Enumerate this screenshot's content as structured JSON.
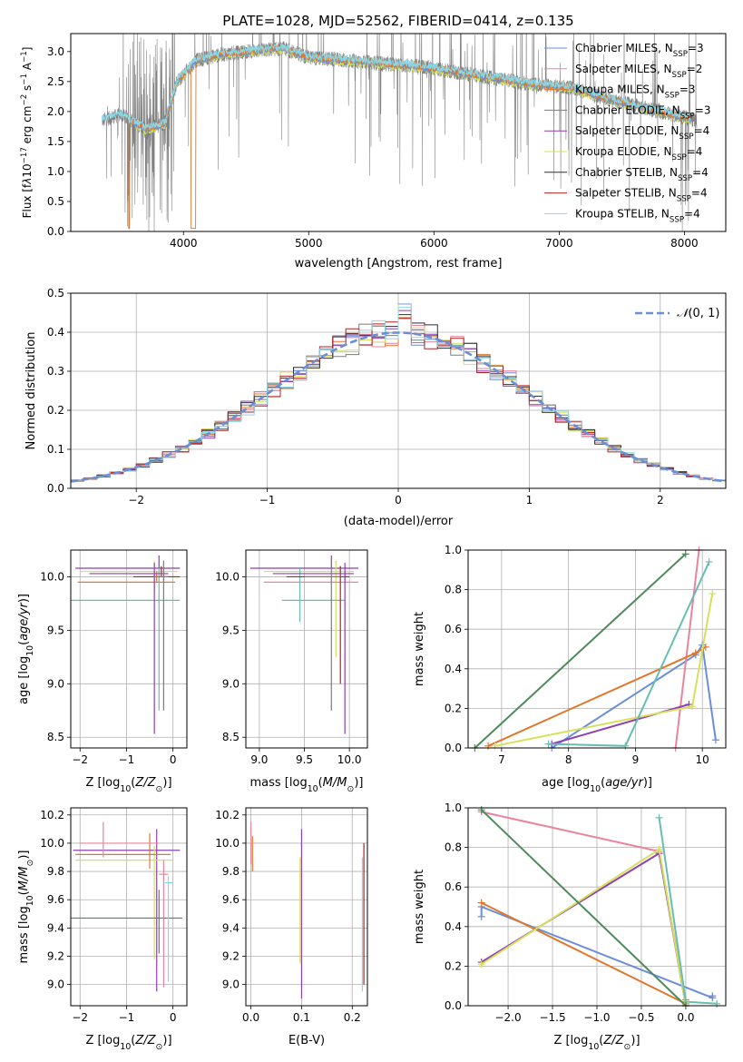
{
  "figure": {
    "series_colors": [
      "#6a8fd8",
      "#e9849d",
      "#e0772b",
      "#7b7b7b",
      "#8e3fb3",
      "#d6e05a",
      "#2e2e2e",
      "#b22222",
      "#88d8e8"
    ],
    "accent_teal": "#66bdb0",
    "accent_green": "#4e8a5c"
  },
  "chart_data": [
    {
      "id": "spectrum",
      "type": "line",
      "title": "PLATE=1028, MJD=52562, FIBERID=0414, z=0.135",
      "xlabel": "wavelength [Angstrom, rest frame]",
      "ylabel": "Flux [f_λ10^-17 erg cm^-2 s^-1 A^-1]",
      "xlim": [
        3100,
        8330
      ],
      "ylim": [
        0,
        3.3
      ],
      "xticks": [
        4000,
        5000,
        6000,
        7000,
        8000
      ],
      "yticks": [
        0.0,
        0.5,
        1.0,
        1.5,
        2.0,
        2.5,
        3.0
      ],
      "legend_position": "upper right",
      "legend": [
        {
          "imf": "Chabrier",
          "lib": "MILES",
          "n": "3"
        },
        {
          "imf": "Salpeter",
          "lib": "MILES",
          "n": "2"
        },
        {
          "imf": "Kroupa",
          "lib": "MILES",
          "n": "3"
        },
        {
          "imf": "Chabrier",
          "lib": "ELODIE",
          "n": "3"
        },
        {
          "imf": "Salpeter",
          "lib": "ELODIE",
          "n": "4"
        },
        {
          "imf": "Kroupa",
          "lib": "ELODIE",
          "n": "4"
        },
        {
          "imf": "Chabrier",
          "lib": "STELIB",
          "n": "4"
        },
        {
          "imf": "Salpeter",
          "lib": "STELIB",
          "n": "4"
        },
        {
          "imf": "Kroupa",
          "lib": "STELIB",
          "n": "4"
        }
      ],
      "data_range": [
        3350,
        8100
      ],
      "continuum_points": [
        [
          3350,
          1.85
        ],
        [
          3500,
          1.95
        ],
        [
          3700,
          1.7
        ],
        [
          3850,
          1.8
        ],
        [
          3950,
          2.5
        ],
        [
          4100,
          2.85
        ],
        [
          4300,
          2.95
        ],
        [
          4500,
          3.0
        ],
        [
          4800,
          3.05
        ],
        [
          5000,
          2.9
        ],
        [
          5300,
          2.85
        ],
        [
          5600,
          2.8
        ],
        [
          5900,
          2.75
        ],
        [
          6200,
          2.65
        ],
        [
          6500,
          2.55
        ],
        [
          6800,
          2.45
        ],
        [
          7100,
          2.4
        ],
        [
          7400,
          2.2
        ],
        [
          7700,
          2.05
        ],
        [
          8100,
          1.85
        ]
      ]
    },
    {
      "id": "residuals",
      "type": "histogram",
      "xlabel": "(data-model)/error",
      "ylabel": "Normed distribution",
      "xlim": [
        -2.5,
        2.5
      ],
      "ylim": [
        0,
        0.5
      ],
      "xticks": [
        -2,
        -1,
        0,
        1,
        2
      ],
      "yticks": [
        0.0,
        0.1,
        0.2,
        0.3,
        0.4,
        0.5
      ],
      "grid": true,
      "legend_position": "upper right",
      "legend_label": "N(0,1)",
      "bin_width": 0.1,
      "bins_start": -2.5
    },
    {
      "id": "age-vs-Z",
      "type": "errorbar",
      "xlabel": "Z [log10(Z/Z☉)]",
      "ylabel": "age  [log10(age/yr)]",
      "xlim": [
        -2.2,
        0.3
      ],
      "ylim": [
        8.4,
        10.25
      ],
      "xticks": [
        -2,
        -1,
        0
      ],
      "yticks": [
        8.5,
        9.0,
        9.5,
        10.0
      ],
      "grid": true,
      "points": [
        {
          "x": -0.3,
          "y": 10.08,
          "xerr": [
            1.8,
            0.45
          ],
          "yerr": [
            0.0,
            0.12
          ],
          "color": 4
        },
        {
          "x": -0.4,
          "y": 10.05,
          "xerr": [
            1.6,
            0.5
          ],
          "yerr": [
            0.2,
            0.1
          ],
          "color": 5
        },
        {
          "x": -0.35,
          "y": 9.95,
          "xerr": [
            1.7,
            0.4
          ],
          "yerr": [
            0.0,
            0.1
          ],
          "color": 2
        },
        {
          "x": -0.3,
          "y": 9.78,
          "xerr": [
            1.9,
            0.45
          ],
          "yerr": [
            1.03,
            0.3
          ],
          "color": 9
        },
        {
          "x": -0.25,
          "y": 10.0,
          "xerr": [
            0.6,
            0.4
          ],
          "yerr": [
            0.0,
            0.1
          ],
          "color": 7
        },
        {
          "x": -0.4,
          "y": 10.03,
          "xerr": [
            1.4,
            0.3
          ],
          "yerr": [
            1.5,
            0.1
          ],
          "color": 4
        },
        {
          "x": -0.2,
          "y": 10.0,
          "xerr": [
            0.2,
            0.1
          ],
          "yerr": [
            1.25,
            0.15
          ],
          "color": 3
        }
      ]
    },
    {
      "id": "age-vs-mass",
      "type": "errorbar",
      "xlabel": "mass [log10(M/M☉)]",
      "ylabel": "",
      "xlim": [
        8.85,
        10.2
      ],
      "ylim": [
        8.4,
        10.25
      ],
      "xticks": [
        9.0,
        9.5,
        10.0
      ],
      "yticks": [
        8.5,
        9.0,
        9.5,
        10.0
      ],
      "grid": true,
      "points": [
        {
          "x": 9.8,
          "y": 10.08,
          "xerr": [
            0.9,
            0.3
          ],
          "yerr": [
            0.0,
            0.12
          ],
          "color": 4
        },
        {
          "x": 9.85,
          "y": 10.05,
          "xerr": [
            0.8,
            0.2
          ],
          "yerr": [
            0.8,
            0.1
          ],
          "color": 5
        },
        {
          "x": 9.95,
          "y": 9.95,
          "xerr": [
            0.9,
            0.15
          ],
          "yerr": [
            0.0,
            0.1
          ],
          "color": 1
        },
        {
          "x": 9.45,
          "y": 9.78,
          "xerr": [
            0.2,
            0.5
          ],
          "yerr": [
            0.2,
            0.3
          ],
          "color": 9
        },
        {
          "x": 9.9,
          "y": 10.0,
          "xerr": [
            0.6,
            0.1
          ],
          "yerr": [
            1.0,
            0.1
          ],
          "color": 7
        },
        {
          "x": 9.95,
          "y": 10.03,
          "xerr": [
            0.8,
            0.1
          ],
          "yerr": [
            1.5,
            0.1
          ],
          "color": 4
        },
        {
          "x": 9.8,
          "y": 10.0,
          "xerr": [
            0.3,
            0.1
          ],
          "yerr": [
            1.25,
            0.1
          ],
          "color": 3
        }
      ]
    },
    {
      "id": "weight-vs-age",
      "type": "line",
      "xlabel": "age  [log10(age/yr)]",
      "ylabel": "mass weight",
      "xlim": [
        6.5,
        10.35
      ],
      "ylim": [
        0,
        1
      ],
      "xticks": [
        7,
        8,
        9,
        10
      ],
      "yticks": [
        0.0,
        0.2,
        0.4,
        0.6,
        0.8,
        1.0
      ],
      "grid": true,
      "series": [
        {
          "color": 0,
          "x": [
            7.75,
            9.9,
            10.0,
            10.2
          ],
          "y": [
            0.0,
            0.47,
            0.52,
            0.04
          ]
        },
        {
          "color": 1,
          "x": [
            9.6,
            9.95
          ],
          "y": [
            0.0,
            1.0
          ]
        },
        {
          "color": 2,
          "x": [
            6.8,
            9.9,
            10.05
          ],
          "y": [
            0.01,
            0.48,
            0.51
          ]
        },
        {
          "color": 4,
          "x": [
            7.75,
            9.8
          ],
          "y": [
            0.02,
            0.22
          ]
        },
        {
          "color": 5,
          "x": [
            6.9,
            9.85,
            10.15
          ],
          "y": [
            0.01,
            0.21,
            0.78
          ]
        },
        {
          "color": 9,
          "x": [
            7.7,
            8.85,
            10.1
          ],
          "y": [
            0.02,
            0.01,
            0.94
          ]
        },
        {
          "color": 10,
          "x": [
            6.6,
            9.75
          ],
          "y": [
            0.0,
            0.98
          ]
        }
      ]
    },
    {
      "id": "mass-vs-Z",
      "type": "errorbar",
      "xlabel": "Z [log10(Z/Z☉)]",
      "ylabel": "mass [log10(M/M☉)]",
      "xlim": [
        -2.2,
        0.3
      ],
      "ylim": [
        8.85,
        10.25
      ],
      "xticks": [
        -2,
        -1,
        0
      ],
      "yticks": [
        9.0,
        9.2,
        9.4,
        9.6,
        9.8,
        10.0,
        10.2
      ],
      "grid": true,
      "points": [
        {
          "x": -0.35,
          "y": 9.95,
          "xerr": [
            1.8,
            0.5
          ],
          "yerr": [
            1.0,
            0.15
          ],
          "color": 4
        },
        {
          "x": -0.4,
          "y": 9.88,
          "xerr": [
            1.7,
            0.4
          ],
          "yerr": [
            0.7,
            0.1
          ],
          "color": 5
        },
        {
          "x": -0.5,
          "y": 9.92,
          "xerr": [
            1.6,
            0.45
          ],
          "yerr": [
            0.1,
            0.15
          ],
          "color": 2
        },
        {
          "x": -0.3,
          "y": 9.47,
          "xerr": [
            1.9,
            0.5
          ],
          "yerr": [
            0.25,
            0.2
          ],
          "color": 10
        },
        {
          "x": -0.2,
          "y": 9.78,
          "xerr": [
            0.1,
            0.1
          ],
          "yerr": [
            0.8,
            0.1
          ],
          "color": 1
        },
        {
          "x": -0.1,
          "y": 9.72,
          "xerr": [
            0.1,
            0.1
          ],
          "yerr": [
            0.7,
            0.05
          ],
          "color": 8
        },
        {
          "x": -1.5,
          "y": 10.0,
          "xerr": [
            0.5,
            1.2
          ],
          "yerr": [
            0.1,
            0.15
          ],
          "color": 1
        }
      ]
    },
    {
      "id": "mass-vs-ebv",
      "type": "errorbar",
      "xlabel": "E(B-V)",
      "ylabel": "",
      "xlim": [
        -0.01,
        0.23
      ],
      "ylim": [
        8.85,
        10.25
      ],
      "xticks": [
        0.0,
        0.1,
        0.2
      ],
      "yticks": [
        9.0,
        9.2,
        9.4,
        9.6,
        9.8,
        10.0,
        10.2
      ],
      "grid": true,
      "points": [
        {
          "x": 0.0,
          "y": 10.05,
          "xerr": [
            0.0,
            0.0
          ],
          "yerr": [
            0.2,
            0.1
          ],
          "color": 1
        },
        {
          "x": 0.003,
          "y": 9.95,
          "xerr": [
            0.0,
            0.0
          ],
          "yerr": [
            0.15,
            0.1
          ],
          "color": 2
        },
        {
          "x": 0.097,
          "y": 9.6,
          "xerr": [
            0.0,
            0.0
          ],
          "yerr": [
            0.45,
            0.3
          ],
          "color": 5
        },
        {
          "x": 0.1,
          "y": 9.6,
          "xerr": [
            0.0,
            0.0
          ],
          "yerr": [
            0.7,
            0.5
          ],
          "color": 4
        },
        {
          "x": 0.22,
          "y": 9.4,
          "xerr": [
            0.0,
            0.0
          ],
          "yerr": [
            0.45,
            0.5
          ],
          "color": 8
        },
        {
          "x": 0.223,
          "y": 9.5,
          "xerr": [
            0.0,
            0.0
          ],
          "yerr": [
            0.5,
            0.5
          ],
          "color": 7
        }
      ]
    },
    {
      "id": "weight-vs-Z",
      "type": "line",
      "xlabel": "Z [log10(Z/Z☉)]",
      "ylabel": "mass weight",
      "xlim": [
        -2.45,
        0.45
      ],
      "ylim": [
        0,
        1
      ],
      "xticks": [
        -2.0,
        -1.5,
        -1.0,
        -0.5,
        0.0
      ],
      "yticks": [
        0.0,
        0.2,
        0.4,
        0.6,
        0.8,
        1.0
      ],
      "grid": true,
      "series": [
        {
          "color": 0,
          "x": [
            -2.3,
            -2.3,
            0.3,
            0.3
          ],
          "y": [
            0.45,
            0.5,
            0.04,
            0.05
          ]
        },
        {
          "color": 1,
          "x": [
            -2.3,
            -0.3,
            0.0
          ],
          "y": [
            0.98,
            0.78,
            0.02
          ]
        },
        {
          "color": 2,
          "x": [
            -2.3,
            0.0,
            0.0
          ],
          "y": [
            0.52,
            0.01,
            0.03
          ]
        },
        {
          "color": 4,
          "x": [
            -2.3,
            -0.3,
            0.0
          ],
          "y": [
            0.22,
            0.77,
            0.0
          ]
        },
        {
          "color": 5,
          "x": [
            -2.3,
            -0.3,
            0.0
          ],
          "y": [
            0.21,
            0.79,
            0.0
          ]
        },
        {
          "color": 9,
          "x": [
            -0.3,
            0.0,
            0.35
          ],
          "y": [
            0.95,
            0.02,
            0.01
          ]
        },
        {
          "color": 10,
          "x": [
            -2.3,
            0.0
          ],
          "y": [
            0.99,
            0.0
          ]
        }
      ]
    }
  ]
}
